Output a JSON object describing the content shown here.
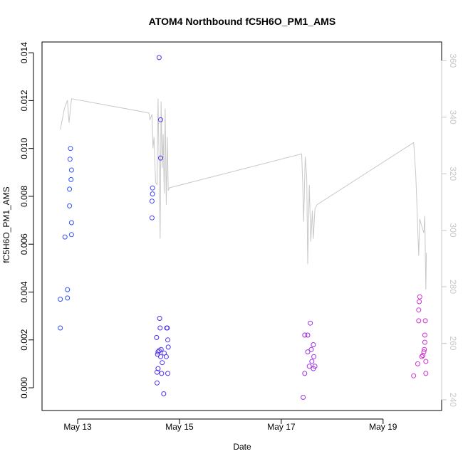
{
  "chart_data": {
    "type": "scatter",
    "title": "ATOM4 Northbound fC5H6O_PM1_AMS",
    "xlabel": "Date",
    "ylabel": "fC5H6O_PM1_AMS",
    "x_ticks": [
      "May 13",
      "May 15",
      "May 17",
      "May 19"
    ],
    "x_tick_values": [
      13,
      15,
      17,
      19
    ],
    "xlim": [
      12.3,
      20.15
    ],
    "ylim": [
      -0.00095,
      0.01445
    ],
    "y_ticks": [
      0.0,
      0.002,
      0.004,
      0.006,
      0.008,
      0.01,
      0.012,
      0.014
    ],
    "y_tick_labels": [
      "0.000",
      "0.002",
      "0.004",
      "0.006",
      "0.008",
      "0.010",
      "0.012",
      "0.014"
    ],
    "y2_ticks": [
      240,
      260,
      280,
      300,
      320,
      340,
      360
    ],
    "y2lim": [
      236.2,
      366.6
    ],
    "grid": false,
    "points": [
      {
        "x": 12.66,
        "y": 0.0025,
        "color": "#3050ff"
      },
      {
        "x": 12.66,
        "y": 0.0037,
        "color": "#3050ff"
      },
      {
        "x": 12.75,
        "y": 0.0063,
        "color": "#3050ff"
      },
      {
        "x": 12.8,
        "y": 0.00375,
        "color": "#3050ff"
      },
      {
        "x": 12.8,
        "y": 0.0041,
        "color": "#3050ff"
      },
      {
        "x": 12.84,
        "y": 0.0083,
        "color": "#3050ff"
      },
      {
        "x": 12.84,
        "y": 0.0076,
        "color": "#3050ff"
      },
      {
        "x": 12.85,
        "y": 0.00955,
        "color": "#3050ff"
      },
      {
        "x": 12.86,
        "y": 0.01,
        "color": "#3050ff"
      },
      {
        "x": 12.87,
        "y": 0.0087,
        "color": "#3050ff"
      },
      {
        "x": 12.88,
        "y": 0.0091,
        "color": "#3050ff"
      },
      {
        "x": 12.88,
        "y": 0.0069,
        "color": "#3050ff"
      },
      {
        "x": 12.88,
        "y": 0.0064,
        "color": "#3050ff"
      },
      {
        "x": 14.46,
        "y": 0.0071,
        "color": "#4040ff"
      },
      {
        "x": 14.46,
        "y": 0.0078,
        "color": "#4040ff"
      },
      {
        "x": 14.47,
        "y": 0.0081,
        "color": "#4040ff"
      },
      {
        "x": 14.47,
        "y": 0.00835,
        "color": "#4040ff"
      },
      {
        "x": 14.55,
        "y": 0.0021,
        "color": "#4a30f0"
      },
      {
        "x": 14.56,
        "y": 0.00065,
        "color": "#4a30f0"
      },
      {
        "x": 14.56,
        "y": 0.0002,
        "color": "#4a30f0"
      },
      {
        "x": 14.57,
        "y": 0.0014,
        "color": "#4a30f0"
      },
      {
        "x": 14.58,
        "y": 0.0015,
        "color": "#4a30f0"
      },
      {
        "x": 14.58,
        "y": 0.0008,
        "color": "#4a30f0"
      },
      {
        "x": 14.6,
        "y": 0.0138,
        "color": "#4a30f0"
      },
      {
        "x": 14.6,
        "y": 0.00155,
        "color": "#4a30f0"
      },
      {
        "x": 14.61,
        "y": 0.0029,
        "color": "#4a30f0"
      },
      {
        "x": 14.62,
        "y": 0.0025,
        "color": "#4a30f0"
      },
      {
        "x": 14.63,
        "y": 0.0112,
        "color": "#4a30f0"
      },
      {
        "x": 14.63,
        "y": 0.0096,
        "color": "#4a30f0"
      },
      {
        "x": 14.63,
        "y": 0.0013,
        "color": "#4a30f0"
      },
      {
        "x": 14.64,
        "y": 0.0016,
        "color": "#4a30f0"
      },
      {
        "x": 14.65,
        "y": 0.0006,
        "color": "#4a30f0"
      },
      {
        "x": 14.66,
        "y": 0.00105,
        "color": "#4a30f0"
      },
      {
        "x": 14.69,
        "y": -0.00025,
        "color": "#4a30f0"
      },
      {
        "x": 14.7,
        "y": 0.00145,
        "color": "#4a30f0"
      },
      {
        "x": 14.75,
        "y": 0.0025,
        "color": "#4a30f0"
      },
      {
        "x": 14.76,
        "y": 0.0025,
        "color": "#4a30f0"
      },
      {
        "x": 14.77,
        "y": 0.002,
        "color": "#4a30f0"
      },
      {
        "x": 14.78,
        "y": 0.0017,
        "color": "#4a30f0"
      },
      {
        "x": 14.74,
        "y": 0.0013,
        "color": "#4a30f0"
      },
      {
        "x": 14.77,
        "y": 0.0006,
        "color": "#4a30f0"
      },
      {
        "x": 17.43,
        "y": -0.0004,
        "color": "#a030e0"
      },
      {
        "x": 17.46,
        "y": 0.0022,
        "color": "#a030e0"
      },
      {
        "x": 17.46,
        "y": 0.0006,
        "color": "#a030e0"
      },
      {
        "x": 17.52,
        "y": 0.0022,
        "color": "#a030e0"
      },
      {
        "x": 17.52,
        "y": 0.0015,
        "color": "#a030e0"
      },
      {
        "x": 17.55,
        "y": 0.0009,
        "color": "#a030e0"
      },
      {
        "x": 17.57,
        "y": 0.0027,
        "color": "#a030e0"
      },
      {
        "x": 17.59,
        "y": 0.0016,
        "color": "#a030e0"
      },
      {
        "x": 17.6,
        "y": 0.0011,
        "color": "#a030e0"
      },
      {
        "x": 17.63,
        "y": 0.0018,
        "color": "#a030e0"
      },
      {
        "x": 17.63,
        "y": 0.0008,
        "color": "#a030e0"
      },
      {
        "x": 17.64,
        "y": 0.0013,
        "color": "#a030e0"
      },
      {
        "x": 17.66,
        "y": 0.0009,
        "color": "#a030e0"
      },
      {
        "x": 19.6,
        "y": 0.0005,
        "color": "#d030d0"
      },
      {
        "x": 19.68,
        "y": 0.001,
        "color": "#d030d0"
      },
      {
        "x": 19.7,
        "y": 0.00325,
        "color": "#d030d0"
      },
      {
        "x": 19.7,
        "y": 0.0028,
        "color": "#d030d0"
      },
      {
        "x": 19.71,
        "y": 0.0036,
        "color": "#d030d0"
      },
      {
        "x": 19.72,
        "y": 0.0038,
        "color": "#d030d0"
      },
      {
        "x": 19.76,
        "y": 0.0013,
        "color": "#d030d0"
      },
      {
        "x": 19.78,
        "y": 0.00135,
        "color": "#d030d0"
      },
      {
        "x": 19.8,
        "y": 0.0015,
        "color": "#d030d0"
      },
      {
        "x": 19.81,
        "y": 0.0016,
        "color": "#d030d0"
      },
      {
        "x": 19.82,
        "y": 0.0019,
        "color": "#d030d0"
      },
      {
        "x": 19.82,
        "y": 0.0022,
        "color": "#d030d0"
      },
      {
        "x": 19.83,
        "y": 0.0028,
        "color": "#d030d0"
      },
      {
        "x": 19.84,
        "y": 0.0011,
        "color": "#d030d0"
      },
      {
        "x": 19.84,
        "y": 0.0006,
        "color": "#d030d0"
      }
    ],
    "secondary_line": {
      "color": "#c8c8c8",
      "axis": "right",
      "points": [
        [
          12.66,
          335.5
        ],
        [
          12.74,
          343
        ],
        [
          12.8,
          346
        ],
        [
          12.83,
          338
        ],
        [
          12.88,
          346.5
        ],
        [
          14.4,
          341.5
        ],
        [
          14.42,
          339
        ],
        [
          14.46,
          341
        ],
        [
          14.48,
          329
        ],
        [
          14.5,
          333
        ],
        [
          14.53,
          317
        ],
        [
          14.56,
          316
        ],
        [
          14.58,
          346.5
        ],
        [
          14.6,
          323
        ],
        [
          14.62,
          297
        ],
        [
          14.64,
          345.5
        ],
        [
          14.66,
          322
        ],
        [
          14.68,
          334
        ],
        [
          14.7,
          313
        ],
        [
          14.72,
          343
        ],
        [
          14.74,
          309
        ],
        [
          14.76,
          333
        ],
        [
          14.78,
          314
        ],
        [
          14.8,
          315
        ],
        [
          17.4,
          327
        ],
        [
          17.42,
          317
        ],
        [
          17.44,
          303
        ],
        [
          17.47,
          326
        ],
        [
          17.5,
          319
        ],
        [
          17.52,
          288
        ],
        [
          17.55,
          316
        ],
        [
          17.58,
          296
        ],
        [
          17.61,
          307
        ],
        [
          17.63,
          297
        ],
        [
          17.66,
          307.5
        ],
        [
          17.7,
          309
        ],
        [
          19.6,
          331
        ],
        [
          19.64,
          320
        ],
        [
          19.66,
          311
        ],
        [
          19.7,
          291
        ],
        [
          19.72,
          304
        ],
        [
          19.75,
          302
        ],
        [
          19.8,
          299
        ],
        [
          19.82,
          305
        ],
        [
          19.84,
          279
        ],
        [
          19.85,
          292
        ]
      ]
    }
  }
}
